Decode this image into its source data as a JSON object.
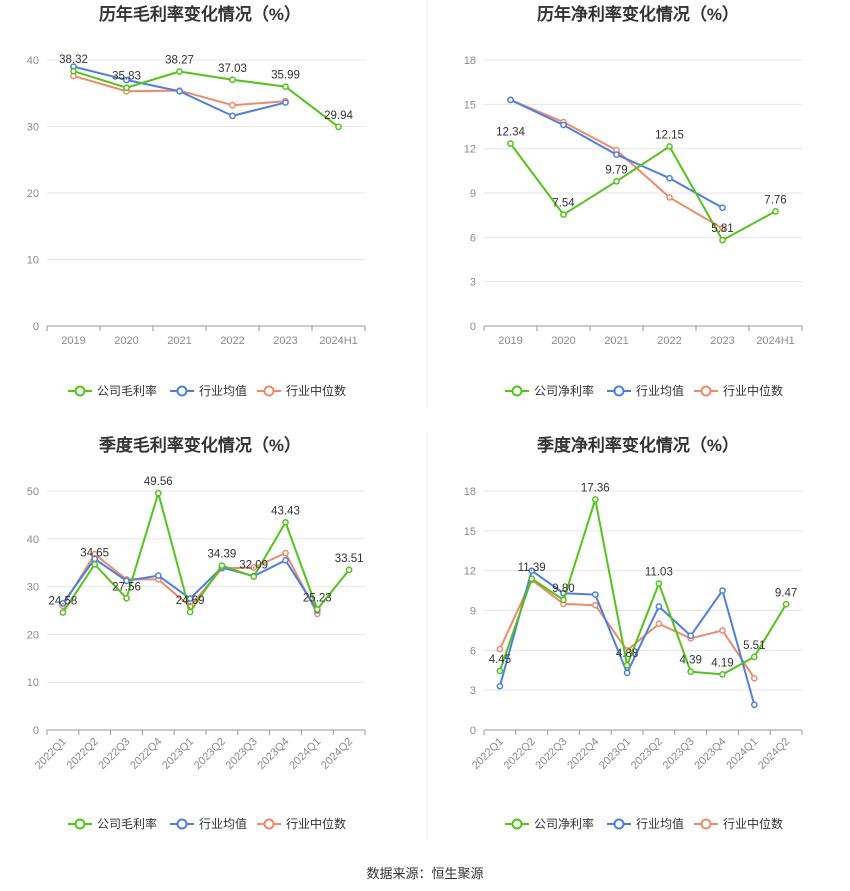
{
  "source": "数据来源：恒生聚源",
  "colors": {
    "company": "#52c41a",
    "avg": "#4e7fe0",
    "median": "#f08a6a"
  },
  "chart_data": [
    {
      "id": "annual-gross",
      "type": "line",
      "title": "历年毛利率变化情况（%）",
      "categories": [
        "2019",
        "2020",
        "2021",
        "2022",
        "2023",
        "2024H1"
      ],
      "ylim": [
        0,
        40
      ],
      "yticks": [
        0,
        10,
        20,
        30,
        40
      ],
      "series": [
        {
          "name": "公司毛利率",
          "color_key": "company",
          "values": [
            38.32,
            35.83,
            38.27,
            37.03,
            35.99,
            29.94
          ],
          "labels": [
            "38.32",
            "35.83",
            "38.27",
            "37.03",
            "35.99",
            "29.94"
          ]
        },
        {
          "name": "行业均值",
          "color_key": "avg",
          "values": [
            39.0,
            37.0,
            35.3,
            31.6,
            33.6,
            null
          ]
        },
        {
          "name": "行业中位数",
          "color_key": "median",
          "values": [
            37.6,
            35.3,
            35.4,
            33.2,
            33.8,
            null
          ]
        }
      ]
    },
    {
      "id": "annual-net",
      "type": "line",
      "title": "历年净利率变化情况（%）",
      "categories": [
        "2019",
        "2020",
        "2021",
        "2022",
        "2023",
        "2024H1"
      ],
      "ylim": [
        0,
        18
      ],
      "yticks": [
        0,
        3,
        6,
        9,
        12,
        15,
        18
      ],
      "series": [
        {
          "name": "公司净利率",
          "color_key": "company",
          "values": [
            12.34,
            7.54,
            9.79,
            12.15,
            5.81,
            7.76
          ],
          "labels": [
            "12.34",
            "7.54",
            "9.79",
            "12.15",
            "5.81",
            "7.76"
          ]
        },
        {
          "name": "行业均值",
          "color_key": "avg",
          "values": [
            15.3,
            13.6,
            11.6,
            10.0,
            8.0,
            null
          ]
        },
        {
          "name": "行业中位数",
          "color_key": "median",
          "values": [
            15.3,
            13.8,
            11.9,
            8.7,
            6.6,
            null
          ]
        }
      ]
    },
    {
      "id": "quarterly-gross",
      "type": "line",
      "title": "季度毛利率变化情况（%）",
      "categories": [
        "2022Q1",
        "2022Q2",
        "2022Q3",
        "2022Q4",
        "2023Q1",
        "2023Q2",
        "2023Q3",
        "2023Q4",
        "2024Q1",
        "2024Q2"
      ],
      "ylim": [
        0,
        50
      ],
      "yticks": [
        0,
        10,
        20,
        30,
        40,
        50
      ],
      "series": [
        {
          "name": "公司毛利率",
          "color_key": "company",
          "values": [
            24.58,
            34.65,
            27.56,
            49.56,
            24.69,
            34.39,
            32.09,
            43.43,
            25.23,
            33.51
          ],
          "labels": [
            "24.58",
            "34.65",
            "27.56",
            "49.56",
            "24.69",
            "34.39",
            "32.09",
            "43.43",
            "25.23",
            "33.51"
          ]
        },
        {
          "name": "行业均值",
          "color_key": "avg",
          "values": [
            26.5,
            35.8,
            31.2,
            32.3,
            27.5,
            34.0,
            32.2,
            35.5,
            25.0,
            null
          ]
        },
        {
          "name": "行业中位数",
          "color_key": "median",
          "values": [
            26.0,
            36.8,
            31.5,
            31.5,
            25.8,
            33.8,
            34.0,
            37.0,
            24.3,
            null
          ]
        }
      ]
    },
    {
      "id": "quarterly-net",
      "type": "line",
      "title": "季度净利率变化情况（%）",
      "categories": [
        "2022Q1",
        "2022Q2",
        "2022Q3",
        "2022Q4",
        "2023Q1",
        "2023Q2",
        "2023Q3",
        "2023Q4",
        "2024Q1",
        "2024Q2"
      ],
      "ylim": [
        0,
        18
      ],
      "yticks": [
        0,
        3,
        6,
        9,
        12,
        15,
        18
      ],
      "series": [
        {
          "name": "公司净利率",
          "color_key": "company",
          "values": [
            4.45,
            11.39,
            9.8,
            17.36,
            4.88,
            11.03,
            4.39,
            4.19,
            5.51,
            9.47
          ],
          "labels": [
            "4.45",
            "11.39",
            "9.80",
            "17.36",
            "4.88",
            "11.03",
            "4.39",
            "4.19",
            "5.51",
            "9.47"
          ]
        },
        {
          "name": "行业均值",
          "color_key": "avg",
          "values": [
            3.3,
            12.0,
            10.3,
            10.2,
            4.3,
            9.3,
            7.1,
            10.5,
            1.9,
            null
          ]
        },
        {
          "name": "行业中位数",
          "color_key": "median",
          "values": [
            6.1,
            11.3,
            9.5,
            9.4,
            6.0,
            8.0,
            6.9,
            7.5,
            3.9,
            null
          ]
        }
      ]
    }
  ]
}
